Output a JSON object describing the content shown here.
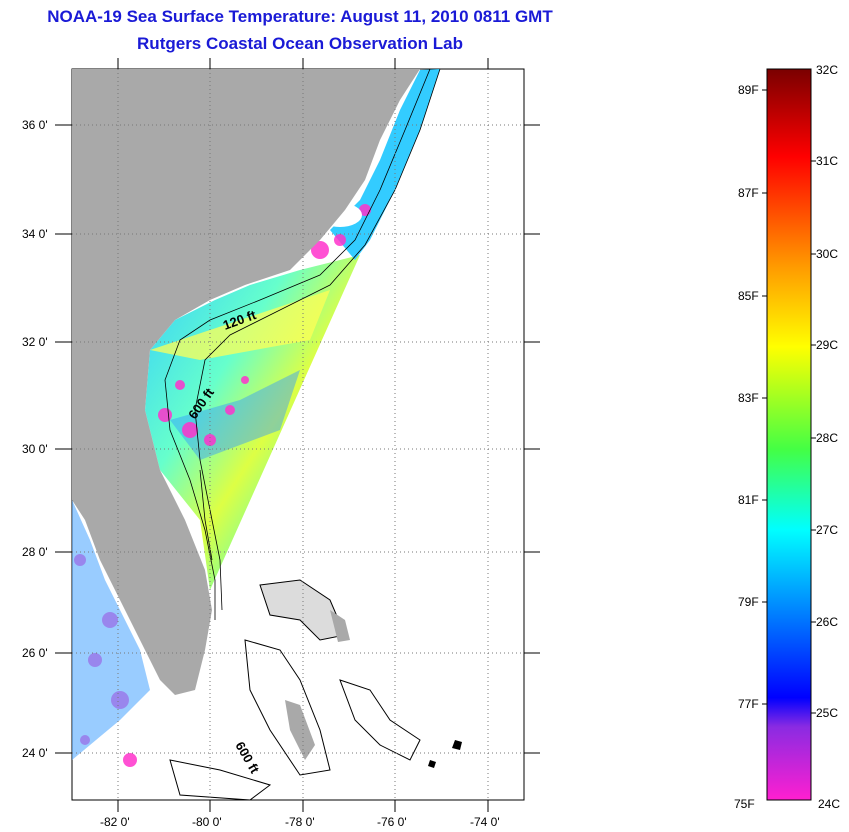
{
  "title": {
    "line1": "NOAA-19 Sea Surface Temperature:  August 11, 2010 0811 GMT",
    "line2": "Rutgers Coastal Ocean Observation Lab"
  },
  "map": {
    "lat_labels": [
      "36 0'",
      "34 0'",
      "32 0'",
      "30 0'",
      "28 0'",
      "26 0'",
      "24 0'"
    ],
    "lon_labels": [
      "-82 0'",
      "-80 0'",
      "-78 0'",
      "-76 0'",
      "-74 0'"
    ],
    "contour_labels": [
      "120 ft",
      "600 ft",
      "600 ft"
    ]
  },
  "colorbar": {
    "fahrenheit": [
      "89F",
      "87F",
      "85F",
      "83F",
      "81F",
      "79F",
      "77F",
      "75F"
    ],
    "celsius": [
      "32C",
      "31C",
      "30C",
      "29C",
      "28C",
      "27C",
      "26C",
      "25C",
      "24C"
    ],
    "colors": {
      "top": "#7a0000",
      "red": "#ff0000",
      "orange": "#ff9a00",
      "yellow": "#ffff00",
      "green": "#44ff44",
      "cyan": "#00ffff",
      "blue": "#0000ff",
      "purple": "#8a2be2",
      "bottom": "#ff1fd0"
    }
  },
  "colors": {
    "land": "#a9a9a9",
    "title": "#1a1ad6"
  }
}
